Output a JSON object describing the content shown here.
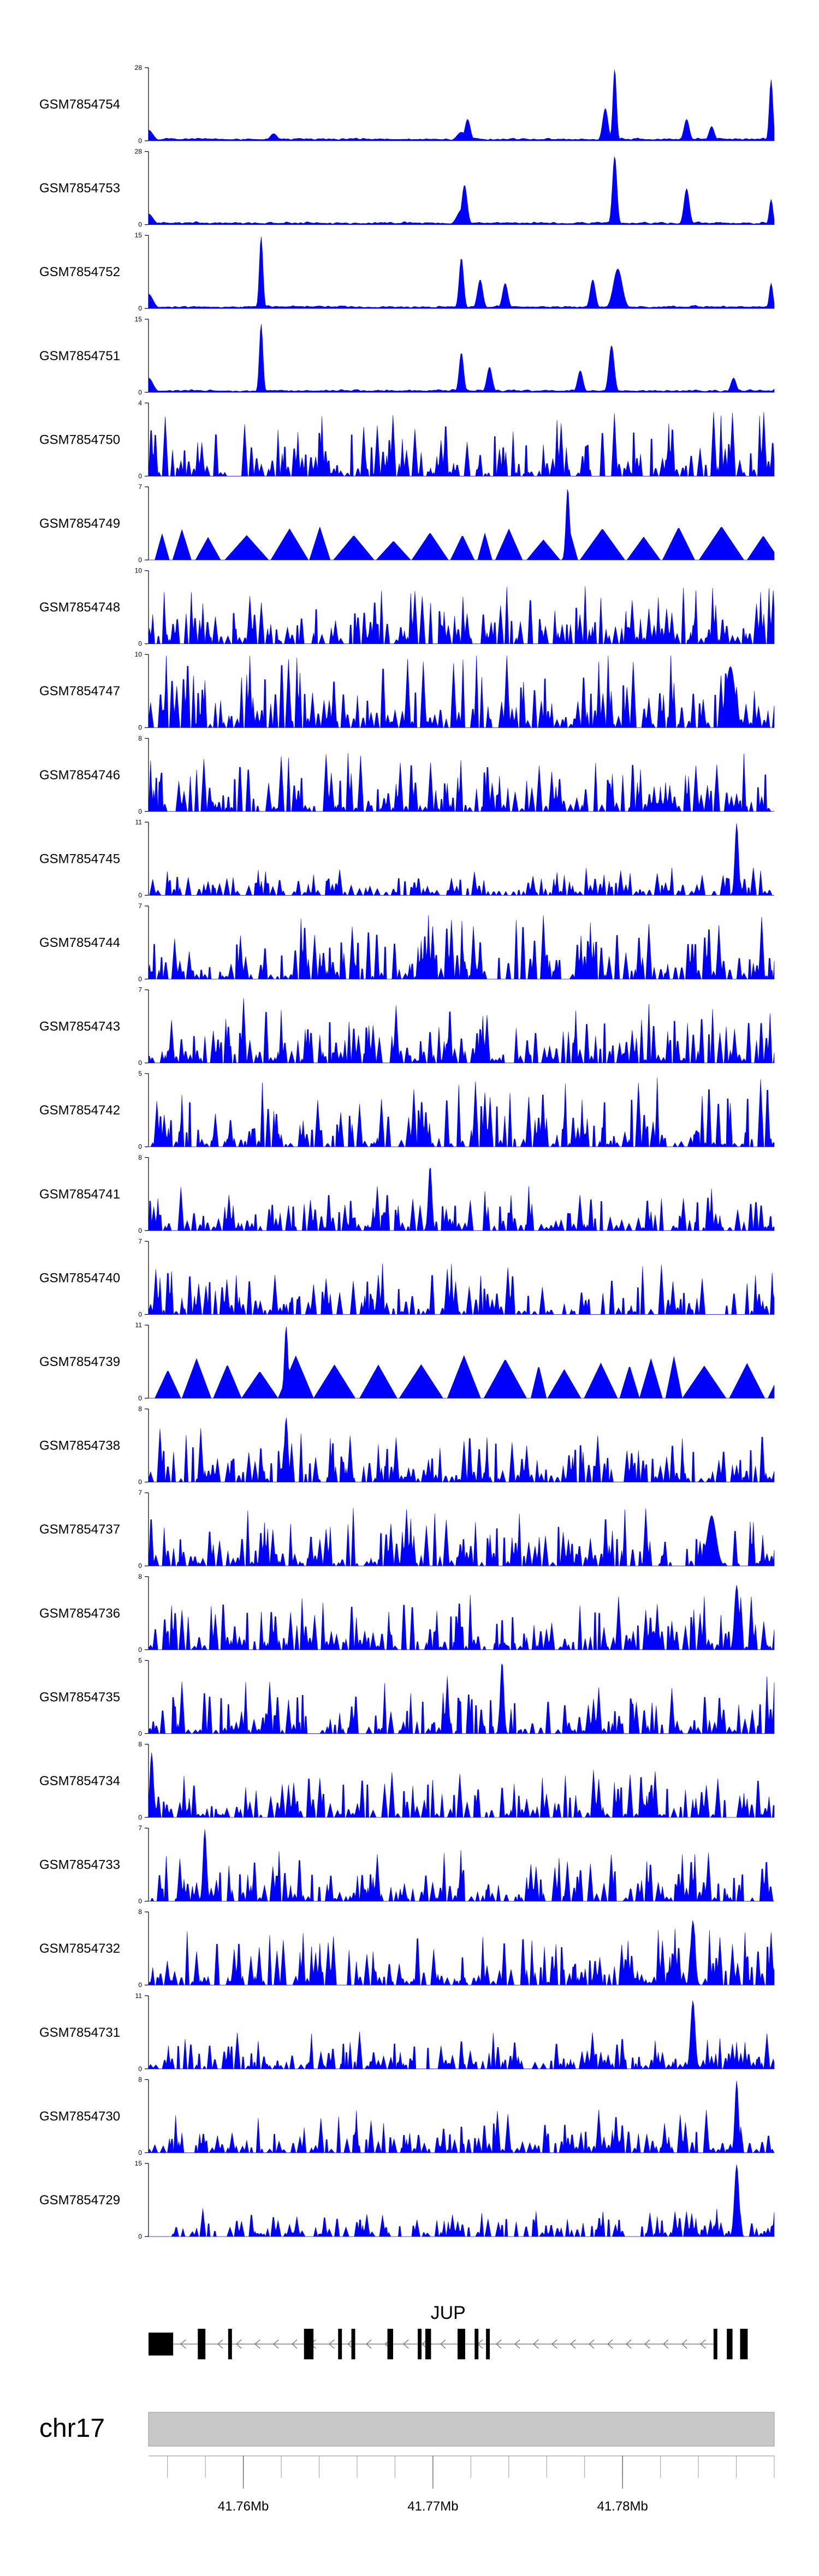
{
  "chart_data": {
    "type": "area",
    "title": "",
    "region": {
      "chromosome": "chr17",
      "xlim_mb": [
        41.755,
        41.788
      ]
    },
    "tracks": [
      {
        "name": "GSM7854754",
        "ymax": 28,
        "seed": 11,
        "style": "smooth",
        "peaks": [
          [
            0.0,
            0.15,
            0.01
          ],
          [
            0.2,
            0.1,
            0.008
          ],
          [
            0.5,
            0.12,
            0.01
          ],
          [
            0.51,
            0.3,
            0.006
          ],
          [
            0.73,
            0.45,
            0.006
          ],
          [
            0.745,
            1.0,
            0.004
          ],
          [
            0.86,
            0.3,
            0.006
          ],
          [
            0.9,
            0.2,
            0.006
          ],
          [
            0.995,
            0.85,
            0.004
          ]
        ]
      },
      {
        "name": "GSM7854753",
        "ymax": 28,
        "seed": 12,
        "style": "smooth",
        "peaks": [
          [
            0.0,
            0.15,
            0.01
          ],
          [
            0.5,
            0.2,
            0.01
          ],
          [
            0.505,
            0.55,
            0.006
          ],
          [
            0.745,
            0.95,
            0.005
          ],
          [
            0.86,
            0.5,
            0.006
          ],
          [
            0.995,
            0.35,
            0.004
          ]
        ]
      },
      {
        "name": "GSM7854752",
        "ymax": 15,
        "seed": 13,
        "style": "smooth",
        "peaks": [
          [
            0.0,
            0.2,
            0.01
          ],
          [
            0.18,
            1.0,
            0.004
          ],
          [
            0.5,
            0.7,
            0.005
          ],
          [
            0.53,
            0.4,
            0.006
          ],
          [
            0.57,
            0.35,
            0.006
          ],
          [
            0.71,
            0.4,
            0.006
          ],
          [
            0.75,
            0.55,
            0.01
          ],
          [
            0.995,
            0.35,
            0.004
          ]
        ]
      },
      {
        "name": "GSM7854751",
        "ymax": 15,
        "seed": 14,
        "style": "smooth",
        "peaks": [
          [
            0.0,
            0.2,
            0.01
          ],
          [
            0.18,
            0.95,
            0.004
          ],
          [
            0.5,
            0.55,
            0.005
          ],
          [
            0.545,
            0.35,
            0.006
          ],
          [
            0.69,
            0.3,
            0.006
          ],
          [
            0.74,
            0.65,
            0.006
          ],
          [
            0.935,
            0.2,
            0.006
          ]
        ]
      },
      {
        "name": "GSM7854750",
        "ymax": 4,
        "seed": 15,
        "style": "spiky",
        "density": 0.55,
        "base": 0.45,
        "peaks": []
      },
      {
        "name": "GSM7854749",
        "ymax": 7,
        "seed": 16,
        "style": "triangles",
        "density": 0.35,
        "base": 0.35,
        "peaks": [
          [
            0.67,
            1.0,
            0.004
          ]
        ]
      },
      {
        "name": "GSM7854748",
        "ymax": 10,
        "seed": 17,
        "style": "spiky",
        "density": 0.55,
        "base": 0.4,
        "peaks": []
      },
      {
        "name": "GSM7854747",
        "ymax": 10,
        "seed": 18,
        "style": "spiky",
        "density": 0.6,
        "base": 0.55,
        "peaks": [
          [
            0.93,
            0.85,
            0.01
          ]
        ]
      },
      {
        "name": "GSM7854746",
        "ymax": 8,
        "seed": 19,
        "style": "spiky",
        "density": 0.55,
        "base": 0.4,
        "peaks": []
      },
      {
        "name": "GSM7854745",
        "ymax": 11,
        "seed": 20,
        "style": "spiky",
        "density": 0.5,
        "base": 0.18,
        "peaks": [
          [
            0.94,
            1.0,
            0.004
          ]
        ]
      },
      {
        "name": "GSM7854744",
        "ymax": 7,
        "seed": 21,
        "style": "spiky",
        "density": 0.55,
        "base": 0.45,
        "peaks": []
      },
      {
        "name": "GSM7854743",
        "ymax": 7,
        "seed": 22,
        "style": "spiky",
        "density": 0.6,
        "base": 0.45,
        "peaks": []
      },
      {
        "name": "GSM7854742",
        "ymax": 5,
        "seed": 23,
        "style": "spiky",
        "density": 0.55,
        "base": 0.5,
        "peaks": []
      },
      {
        "name": "GSM7854741",
        "ymax": 8,
        "seed": 24,
        "style": "spiky",
        "density": 0.55,
        "base": 0.3,
        "peaks": [
          [
            0.45,
            0.9,
            0.004
          ]
        ]
      },
      {
        "name": "GSM7854740",
        "ymax": 7,
        "seed": 25,
        "style": "spiky",
        "density": 0.5,
        "base": 0.35,
        "peaks": []
      },
      {
        "name": "GSM7854739",
        "ymax": 11,
        "seed": 26,
        "style": "triangles",
        "density": 0.3,
        "base": 0.45,
        "peaks": [
          [
            0.22,
            1.0,
            0.004
          ]
        ]
      },
      {
        "name": "GSM7854738",
        "ymax": 8,
        "seed": 27,
        "style": "spiky",
        "density": 0.6,
        "base": 0.4,
        "peaks": [
          [
            0.22,
            0.9,
            0.004
          ]
        ]
      },
      {
        "name": "GSM7854737",
        "ymax": 7,
        "seed": 28,
        "style": "spiky",
        "density": 0.6,
        "base": 0.4,
        "peaks": [
          [
            0.9,
            0.7,
            0.01
          ]
        ]
      },
      {
        "name": "GSM7854736",
        "ymax": 8,
        "seed": 29,
        "style": "spiky",
        "density": 0.6,
        "base": 0.4,
        "peaks": [
          [
            0.94,
            0.9,
            0.005
          ]
        ]
      },
      {
        "name": "GSM7854735",
        "ymax": 5,
        "seed": 30,
        "style": "spiky",
        "density": 0.55,
        "base": 0.4,
        "peaks": [
          [
            0.565,
            1.0,
            0.004
          ]
        ]
      },
      {
        "name": "GSM7854734",
        "ymax": 8,
        "seed": 31,
        "style": "spiky",
        "density": 0.55,
        "base": 0.35,
        "peaks": [
          [
            0.005,
            0.9,
            0.004
          ]
        ]
      },
      {
        "name": "GSM7854733",
        "ymax": 7,
        "seed": 32,
        "style": "spiky",
        "density": 0.55,
        "base": 0.35,
        "peaks": [
          [
            0.09,
            1.0,
            0.004
          ]
        ]
      },
      {
        "name": "GSM7854732",
        "ymax": 8,
        "seed": 33,
        "style": "spiky",
        "density": 0.6,
        "base": 0.4,
        "peaks": [
          [
            0.87,
            0.9,
            0.005
          ]
        ]
      },
      {
        "name": "GSM7854731",
        "ymax": 11,
        "seed": 34,
        "style": "spiky",
        "density": 0.55,
        "base": 0.25,
        "peaks": [
          [
            0.87,
            0.95,
            0.005
          ]
        ]
      },
      {
        "name": "GSM7854730",
        "ymax": 8,
        "seed": 35,
        "style": "spiky",
        "density": 0.55,
        "base": 0.3,
        "peaks": [
          [
            0.94,
            1.0,
            0.004
          ]
        ]
      },
      {
        "name": "GSM7854729",
        "ymax": 15,
        "seed": 36,
        "style": "spiky",
        "density": 0.45,
        "base": 0.18,
        "peaks": [
          [
            0.94,
            1.0,
            0.005
          ]
        ]
      }
    ],
    "gene": {
      "label": "JUP",
      "exons_mb": [
        [
          41.755,
          41.7563
        ],
        [
          41.7576,
          41.758
        ],
        [
          41.7592,
          41.7594
        ],
        [
          41.7632,
          41.7637
        ],
        [
          41.765,
          41.7652
        ],
        [
          41.7657,
          41.7659
        ],
        [
          41.7676,
          41.7679
        ],
        [
          41.7692,
          41.7694
        ],
        [
          41.7696,
          41.7699
        ],
        [
          41.7713,
          41.7717
        ],
        [
          41.7722,
          41.7724
        ],
        [
          41.7728,
          41.773
        ],
        [
          41.7848,
          41.785
        ],
        [
          41.7855,
          41.7858
        ],
        [
          41.7862,
          41.7866
        ]
      ],
      "intron_start_mb": 41.7563,
      "intron_end_mb": 41.7848,
      "strand": "-"
    },
    "axis": {
      "chromosome_label": "chr17",
      "tick_labels": [
        {
          "mb": 41.76,
          "label": "41.76Mb"
        },
        {
          "mb": 41.77,
          "label": "41.77Mb"
        },
        {
          "mb": 41.78,
          "label": "41.78Mb"
        }
      ],
      "minor_tick_step_mb": 0.002
    }
  }
}
